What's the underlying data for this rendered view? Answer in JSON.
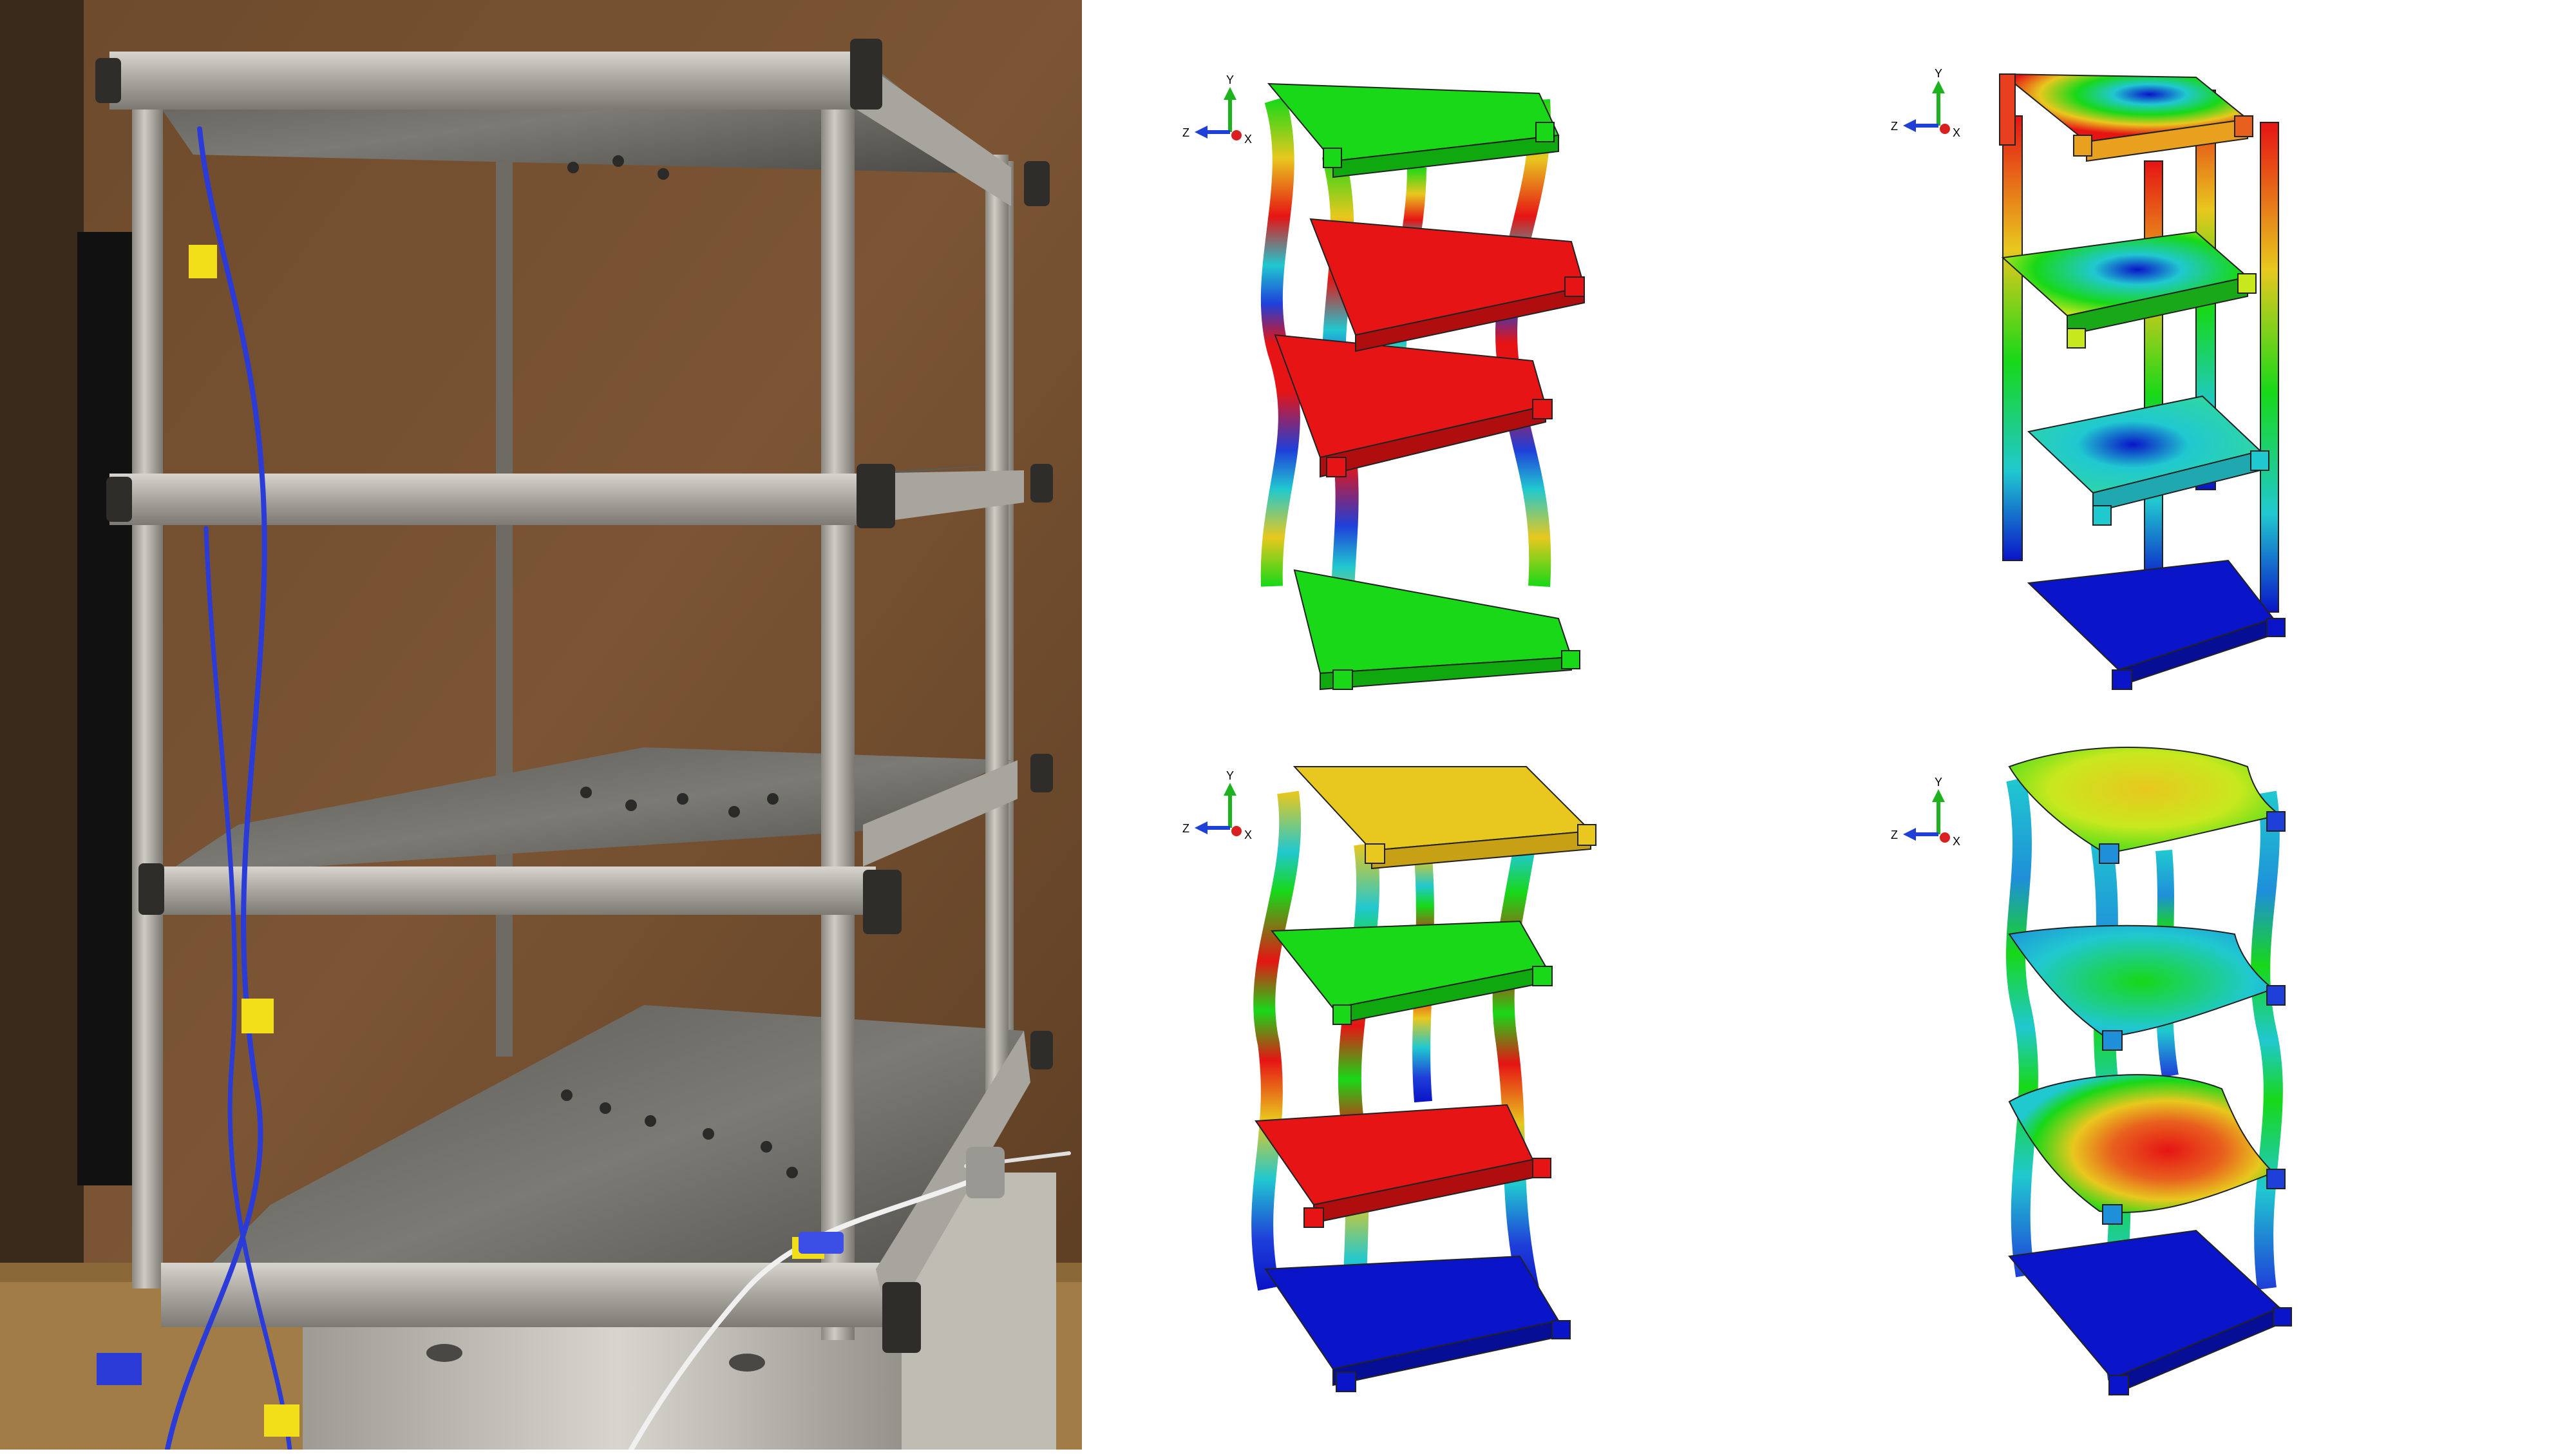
{
  "photo": {
    "tags": [
      "",
      "",
      ""
    ]
  },
  "triad": {
    "y_label": "Y",
    "z_label": "Z",
    "x_label": "X",
    "y_color": "#1fb21f",
    "z_color": "#1f3fd9",
    "x_color": "#d92020"
  },
  "contour_colors": {
    "blue": "#0a14c8",
    "cyan": "#20c8d0",
    "green": "#18d818",
    "yellow": "#e8c81e",
    "red": "#e61414"
  },
  "panels": [
    {
      "panel": "top-left",
      "deformation": "bending-lateral",
      "floors": [
        "green",
        "red",
        "red",
        "green"
      ]
    },
    {
      "panel": "top-right",
      "deformation": "plate-dome-twist",
      "floors": [
        "red-blue",
        "green-blue",
        "cyan-blue",
        "blue"
      ]
    },
    {
      "panel": "bottom-left",
      "deformation": "bending-lateral-2",
      "floors": [
        "yellow",
        "green",
        "red",
        "blue"
      ]
    },
    {
      "panel": "bottom-right",
      "deformation": "plate-saddle",
      "floors": [
        "green",
        "cyan",
        "red",
        "blue"
      ]
    }
  ]
}
